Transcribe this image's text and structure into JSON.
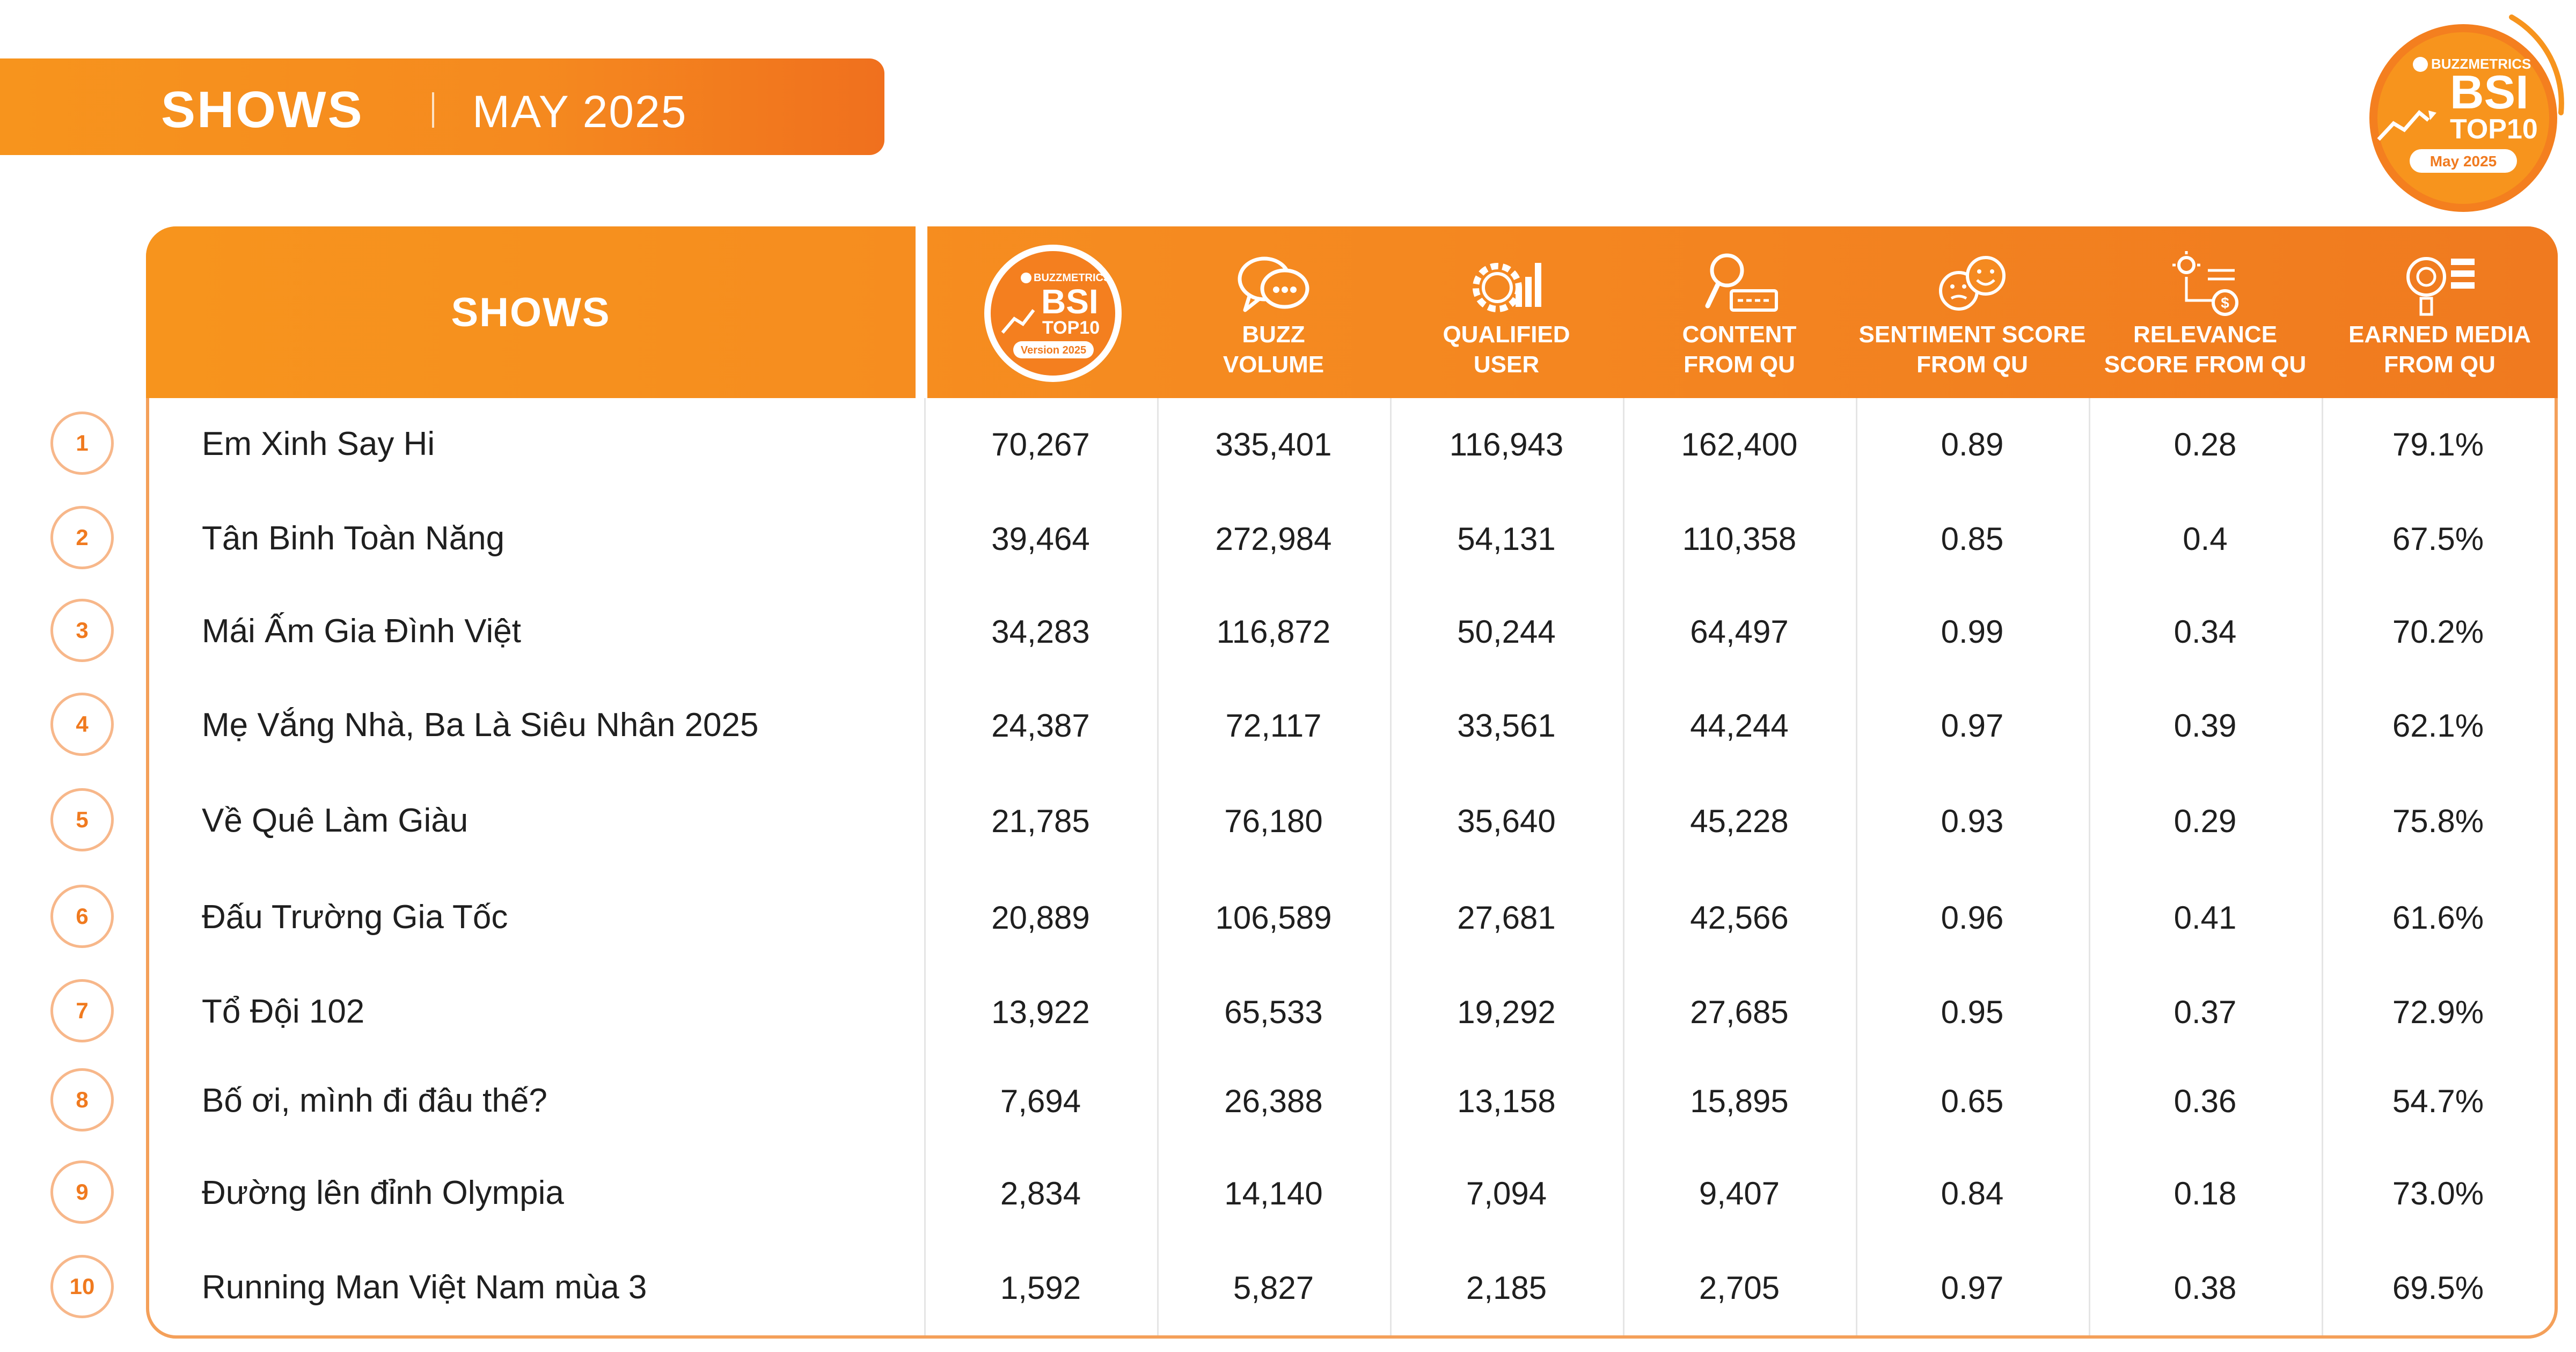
{
  "title": {
    "main": "SHOWS",
    "period": "MAY 2025"
  },
  "badge": {
    "brand": "BUZZMETRICS",
    "name": "BSI",
    "top": "TOP10",
    "date": "May 2025"
  },
  "table": {
    "shows_header": "SHOWS",
    "bsi_logo": {
      "brand": "BUZZMETRICS",
      "name": "BSI",
      "top": "TOP10",
      "version": "Version 2025"
    },
    "columns": [
      {
        "line1": "BUZZ",
        "line2": "VOLUME",
        "icon": "chat-bubbles-icon"
      },
      {
        "line1": "QUALIFIED",
        "line2": "USER",
        "icon": "gear-chart-icon"
      },
      {
        "line1": "CONTENT",
        "line2": "FROM QU",
        "icon": "search-content-icon"
      },
      {
        "line1": "SENTIMENT SCORE",
        "line2": "FROM QU",
        "icon": "emoji-faces-icon"
      },
      {
        "line1": "RELEVANCE",
        "line2": "SCORE FROM QU",
        "icon": "relevance-icon"
      },
      {
        "line1": "EARNED MEDIA",
        "line2": "FROM QU",
        "icon": "media-icon"
      }
    ],
    "rows": [
      {
        "rank": "1",
        "name": "Em Xinh Say Hi",
        "bsi": "70,267",
        "buzz": "335,401",
        "qu": "116,943",
        "content": "162,400",
        "sentiment": "0.89",
        "relevance": "0.28",
        "earned": "79.1%"
      },
      {
        "rank": "2",
        "name": "Tân Binh Toàn Năng",
        "bsi": "39,464",
        "buzz": "272,984",
        "qu": "54,131",
        "content": "110,358",
        "sentiment": "0.85",
        "relevance": "0.4",
        "earned": "67.5%"
      },
      {
        "rank": "3",
        "name": "Mái Ấm Gia Đình Việt",
        "bsi": "34,283",
        "buzz": "116,872",
        "qu": "50,244",
        "content": "64,497",
        "sentiment": "0.99",
        "relevance": "0.34",
        "earned": "70.2%"
      },
      {
        "rank": "4",
        "name": "Mẹ Vắng Nhà, Ba Là Siêu Nhân 2025",
        "bsi": "24,387",
        "buzz": "72,117",
        "qu": "33,561",
        "content": "44,244",
        "sentiment": "0.97",
        "relevance": "0.39",
        "earned": "62.1%"
      },
      {
        "rank": "5",
        "name": "Về Quê Làm Giàu",
        "bsi": "21,785",
        "buzz": "76,180",
        "qu": "35,640",
        "content": "45,228",
        "sentiment": "0.93",
        "relevance": "0.29",
        "earned": "75.8%"
      },
      {
        "rank": "6",
        "name": "Đấu Trường Gia Tốc",
        "bsi": "20,889",
        "buzz": "106,589",
        "qu": "27,681",
        "content": "42,566",
        "sentiment": "0.96",
        "relevance": "0.41",
        "earned": "61.6%"
      },
      {
        "rank": "7",
        "name": "Tổ Đội 102",
        "bsi": "13,922",
        "buzz": "65,533",
        "qu": "19,292",
        "content": "27,685",
        "sentiment": "0.95",
        "relevance": "0.37",
        "earned": "72.9%"
      },
      {
        "rank": "8",
        "name": "Bố ơi, mình đi đâu thế?",
        "bsi": "7,694",
        "buzz": "26,388",
        "qu": "13,158",
        "content": "15,895",
        "sentiment": "0.65",
        "relevance": "0.36",
        "earned": "54.7%"
      },
      {
        "rank": "9",
        "name": "Đường lên đỉnh Olympia",
        "bsi": "2,834",
        "buzz": "14,140",
        "qu": "7,094",
        "content": "9,407",
        "sentiment": "0.84",
        "relevance": "0.18",
        "earned": "73.0%"
      },
      {
        "rank": "10",
        "name": "Running Man Việt Nam mùa 3",
        "bsi": "1,592",
        "buzz": "5,827",
        "qu": "2,185",
        "content": "2,705",
        "sentiment": "0.97",
        "relevance": "0.38",
        "earned": "69.5%"
      }
    ]
  },
  "colors": {
    "accent": "#f7941d",
    "accent_dark": "#f07a1f",
    "border": "#f4a05a",
    "divider": "#e5e5e5"
  }
}
